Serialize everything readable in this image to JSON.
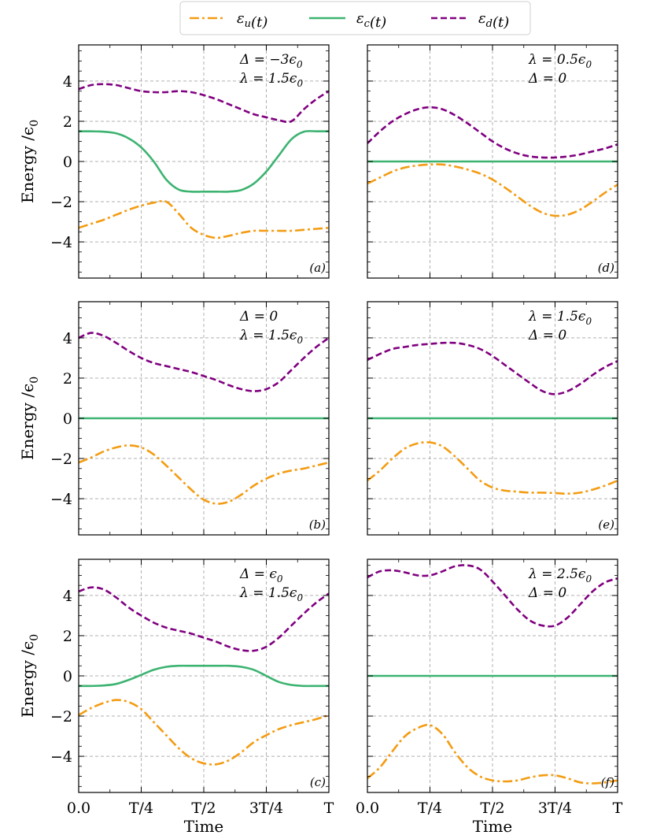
{
  "chart_data": {
    "type": "line",
    "legend": {
      "placement": "top-center",
      "entries": [
        {
          "key": "u",
          "label": "εu(t)"
        },
        {
          "key": "c",
          "label": "εc(t)"
        },
        {
          "key": "d",
          "label": "εd(t)"
        }
      ]
    },
    "colors": {
      "u": "#f39c12",
      "c": "#3cb371",
      "d": "#800080"
    },
    "line_styles": {
      "u": "dash-dot",
      "c": "solid",
      "d": "dashed"
    },
    "xlabel": "Time",
    "ylabel": "Energy /ϵ0",
    "xlim": [
      0,
      1
    ],
    "ylim": [
      -5.8,
      5.8
    ],
    "grid": true,
    "x_ticks": [
      {
        "value": 0,
        "label": "0.0"
      },
      {
        "value": 0.25,
        "label": "T/4"
      },
      {
        "value": 0.5,
        "label": "T/2"
      },
      {
        "value": 0.75,
        "label": "3T/4"
      },
      {
        "value": 1,
        "label": "T"
      }
    ],
    "y_ticks": [
      {
        "value": 4,
        "label": "4"
      },
      {
        "value": 2,
        "label": "2"
      },
      {
        "value": 0,
        "label": "0"
      },
      {
        "value": -2,
        "label": "−2"
      },
      {
        "value": -4,
        "label": "−4"
      }
    ],
    "panels": [
      {
        "tag": "(a)",
        "annotations": [
          "Δ = −3ϵ0",
          "λ = 1.5ϵ0"
        ],
        "x": [
          0,
          0.05,
          0.1,
          0.15,
          0.2,
          0.25,
          0.3,
          0.35,
          0.4,
          0.45,
          0.5,
          0.55,
          0.6,
          0.65,
          0.7,
          0.75,
          0.8,
          0.85,
          0.9,
          0.95,
          1
        ],
        "series": [
          {
            "key": "u",
            "values": [
              -3.3,
              -3.1,
              -2.9,
              -2.65,
              -2.4,
              -2.2,
              -2.05,
              -2.0,
              -2.6,
              -3.3,
              -3.65,
              -3.8,
              -3.7,
              -3.55,
              -3.45,
              -3.45,
              -3.45,
              -3.45,
              -3.4,
              -3.35,
              -3.3
            ]
          },
          {
            "key": "c",
            "values": [
              1.5,
              1.5,
              1.48,
              1.4,
              1.15,
              0.7,
              0.0,
              -0.9,
              -1.4,
              -1.5,
              -1.5,
              -1.5,
              -1.5,
              -1.42,
              -1.1,
              -0.5,
              0.3,
              1.1,
              1.48,
              1.5,
              1.5
            ]
          },
          {
            "key": "d",
            "values": [
              3.6,
              3.8,
              3.85,
              3.8,
              3.65,
              3.5,
              3.45,
              3.45,
              3.5,
              3.45,
              3.3,
              3.1,
              2.85,
              2.6,
              2.35,
              2.2,
              2.05,
              2.0,
              2.6,
              3.1,
              3.5
            ]
          }
        ]
      },
      {
        "tag": "(d)",
        "annotations": [
          "λ = 0.5ϵ0",
          "Δ = 0"
        ],
        "x": [
          0,
          0.05,
          0.1,
          0.15,
          0.2,
          0.25,
          0.3,
          0.35,
          0.4,
          0.45,
          0.5,
          0.55,
          0.6,
          0.65,
          0.7,
          0.75,
          0.8,
          0.85,
          0.9,
          0.95,
          1
        ],
        "series": [
          {
            "key": "u",
            "values": [
              -1.1,
              -0.8,
              -0.5,
              -0.3,
              -0.2,
              -0.15,
              -0.15,
              -0.25,
              -0.4,
              -0.6,
              -0.9,
              -1.3,
              -1.75,
              -2.2,
              -2.55,
              -2.7,
              -2.65,
              -2.4,
              -2.0,
              -1.55,
              -1.15
            ]
          },
          {
            "key": "c",
            "values": [
              0,
              0,
              0,
              0,
              0,
              0,
              0,
              0,
              0,
              0,
              0,
              0,
              0,
              0,
              0,
              0,
              0,
              0,
              0,
              0,
              0
            ]
          },
          {
            "key": "d",
            "values": [
              0.9,
              1.5,
              2.0,
              2.35,
              2.6,
              2.7,
              2.6,
              2.3,
              1.9,
              1.45,
              1.0,
              0.65,
              0.4,
              0.25,
              0.2,
              0.2,
              0.25,
              0.35,
              0.5,
              0.65,
              0.85
            ]
          }
        ]
      },
      {
        "tag": "(b)",
        "annotations": [
          "Δ = 0",
          "λ = 1.5ϵ0"
        ],
        "x": [
          0,
          0.05,
          0.1,
          0.15,
          0.2,
          0.25,
          0.3,
          0.35,
          0.4,
          0.45,
          0.5,
          0.55,
          0.6,
          0.65,
          0.7,
          0.75,
          0.8,
          0.85,
          0.9,
          0.95,
          1
        ],
        "series": [
          {
            "key": "u",
            "values": [
              -2.2,
              -1.95,
              -1.65,
              -1.45,
              -1.35,
              -1.45,
              -1.8,
              -2.35,
              -2.95,
              -3.55,
              -4.05,
              -4.25,
              -4.15,
              -3.8,
              -3.35,
              -3.0,
              -2.75,
              -2.6,
              -2.5,
              -2.35,
              -2.2
            ]
          },
          {
            "key": "c",
            "values": [
              0,
              0,
              0,
              0,
              0,
              0,
              0,
              0,
              0,
              0,
              0,
              0,
              0,
              0,
              0,
              0,
              0,
              0,
              0,
              0,
              0
            ]
          },
          {
            "key": "d",
            "values": [
              4.0,
              4.25,
              4.1,
              3.75,
              3.35,
              3.0,
              2.75,
              2.6,
              2.45,
              2.3,
              2.1,
              1.9,
              1.65,
              1.45,
              1.35,
              1.45,
              1.8,
              2.4,
              3.0,
              3.55,
              4.0
            ]
          }
        ]
      },
      {
        "tag": "(e)",
        "annotations": [
          "λ = 1.5ϵ0",
          "Δ = 0"
        ],
        "x": [
          0,
          0.05,
          0.1,
          0.15,
          0.2,
          0.25,
          0.3,
          0.35,
          0.4,
          0.45,
          0.5,
          0.55,
          0.6,
          0.65,
          0.7,
          0.75,
          0.8,
          0.85,
          0.9,
          0.95,
          1
        ],
        "series": [
          {
            "key": "u",
            "values": [
              -3.1,
              -2.6,
              -2.0,
              -1.5,
              -1.25,
              -1.2,
              -1.4,
              -1.9,
              -2.5,
              -3.1,
              -3.45,
              -3.6,
              -3.65,
              -3.7,
              -3.7,
              -3.72,
              -3.75,
              -3.7,
              -3.55,
              -3.35,
              -3.1
            ]
          },
          {
            "key": "c",
            "values": [
              0,
              0,
              0,
              0,
              0,
              0,
              0,
              0,
              0,
              0,
              0,
              0,
              0,
              0,
              0,
              0,
              0,
              0,
              0,
              0,
              0
            ]
          },
          {
            "key": "d",
            "values": [
              2.9,
              3.2,
              3.45,
              3.55,
              3.65,
              3.7,
              3.75,
              3.75,
              3.65,
              3.45,
              3.1,
              2.65,
              2.2,
              1.75,
              1.35,
              1.2,
              1.35,
              1.7,
              2.15,
              2.55,
              2.85
            ]
          }
        ]
      },
      {
        "tag": "(c)",
        "annotations": [
          "Δ = ϵ0",
          "λ = 1.5ϵ0"
        ],
        "x": [
          0,
          0.05,
          0.1,
          0.15,
          0.2,
          0.25,
          0.3,
          0.35,
          0.4,
          0.45,
          0.5,
          0.55,
          0.6,
          0.65,
          0.7,
          0.75,
          0.8,
          0.85,
          0.9,
          0.95,
          1
        ],
        "series": [
          {
            "key": "u",
            "values": [
              -1.95,
              -1.6,
              -1.35,
              -1.2,
              -1.3,
              -1.65,
              -2.3,
              -2.95,
              -3.6,
              -4.1,
              -4.35,
              -4.4,
              -4.2,
              -3.8,
              -3.3,
              -2.95,
              -2.65,
              -2.45,
              -2.3,
              -2.15,
              -1.95
            ]
          },
          {
            "key": "c",
            "values": [
              -0.5,
              -0.5,
              -0.48,
              -0.4,
              -0.2,
              0.05,
              0.3,
              0.45,
              0.5,
              0.5,
              0.5,
              0.5,
              0.5,
              0.45,
              0.3,
              0.0,
              -0.3,
              -0.45,
              -0.5,
              -0.5,
              -0.5
            ]
          },
          {
            "key": "d",
            "values": [
              4.2,
              4.4,
              4.3,
              3.9,
              3.4,
              3.0,
              2.65,
              2.4,
              2.25,
              2.1,
              1.9,
              1.7,
              1.45,
              1.28,
              1.25,
              1.45,
              1.9,
              2.5,
              3.1,
              3.65,
              4.1
            ]
          }
        ]
      },
      {
        "tag": "(f)",
        "annotations": [
          "λ = 2.5ϵ0",
          "Δ = 0"
        ],
        "x": [
          0,
          0.05,
          0.1,
          0.15,
          0.2,
          0.25,
          0.3,
          0.35,
          0.4,
          0.45,
          0.5,
          0.55,
          0.6,
          0.65,
          0.7,
          0.75,
          0.8,
          0.85,
          0.9,
          0.95,
          1
        ],
        "series": [
          {
            "key": "u",
            "values": [
              -5.1,
              -4.55,
              -3.75,
              -3.0,
              -2.6,
              -2.45,
              -2.9,
              -3.8,
              -4.55,
              -5.0,
              -5.2,
              -5.25,
              -5.2,
              -5.05,
              -4.95,
              -4.95,
              -5.1,
              -5.3,
              -5.35,
              -5.3,
              -5.2
            ]
          },
          {
            "key": "c",
            "values": [
              0,
              0,
              0,
              0,
              0,
              0,
              0,
              0,
              0,
              0,
              0,
              0,
              0,
              0,
              0,
              0,
              0,
              0,
              0,
              0,
              0
            ]
          },
          {
            "key": "d",
            "values": [
              4.9,
              5.2,
              5.25,
              5.15,
              5.0,
              5.0,
              5.2,
              5.45,
              5.5,
              5.3,
              4.7,
              4.0,
              3.3,
              2.75,
              2.5,
              2.5,
              2.9,
              3.55,
              4.2,
              4.65,
              4.85
            ]
          }
        ]
      }
    ]
  }
}
